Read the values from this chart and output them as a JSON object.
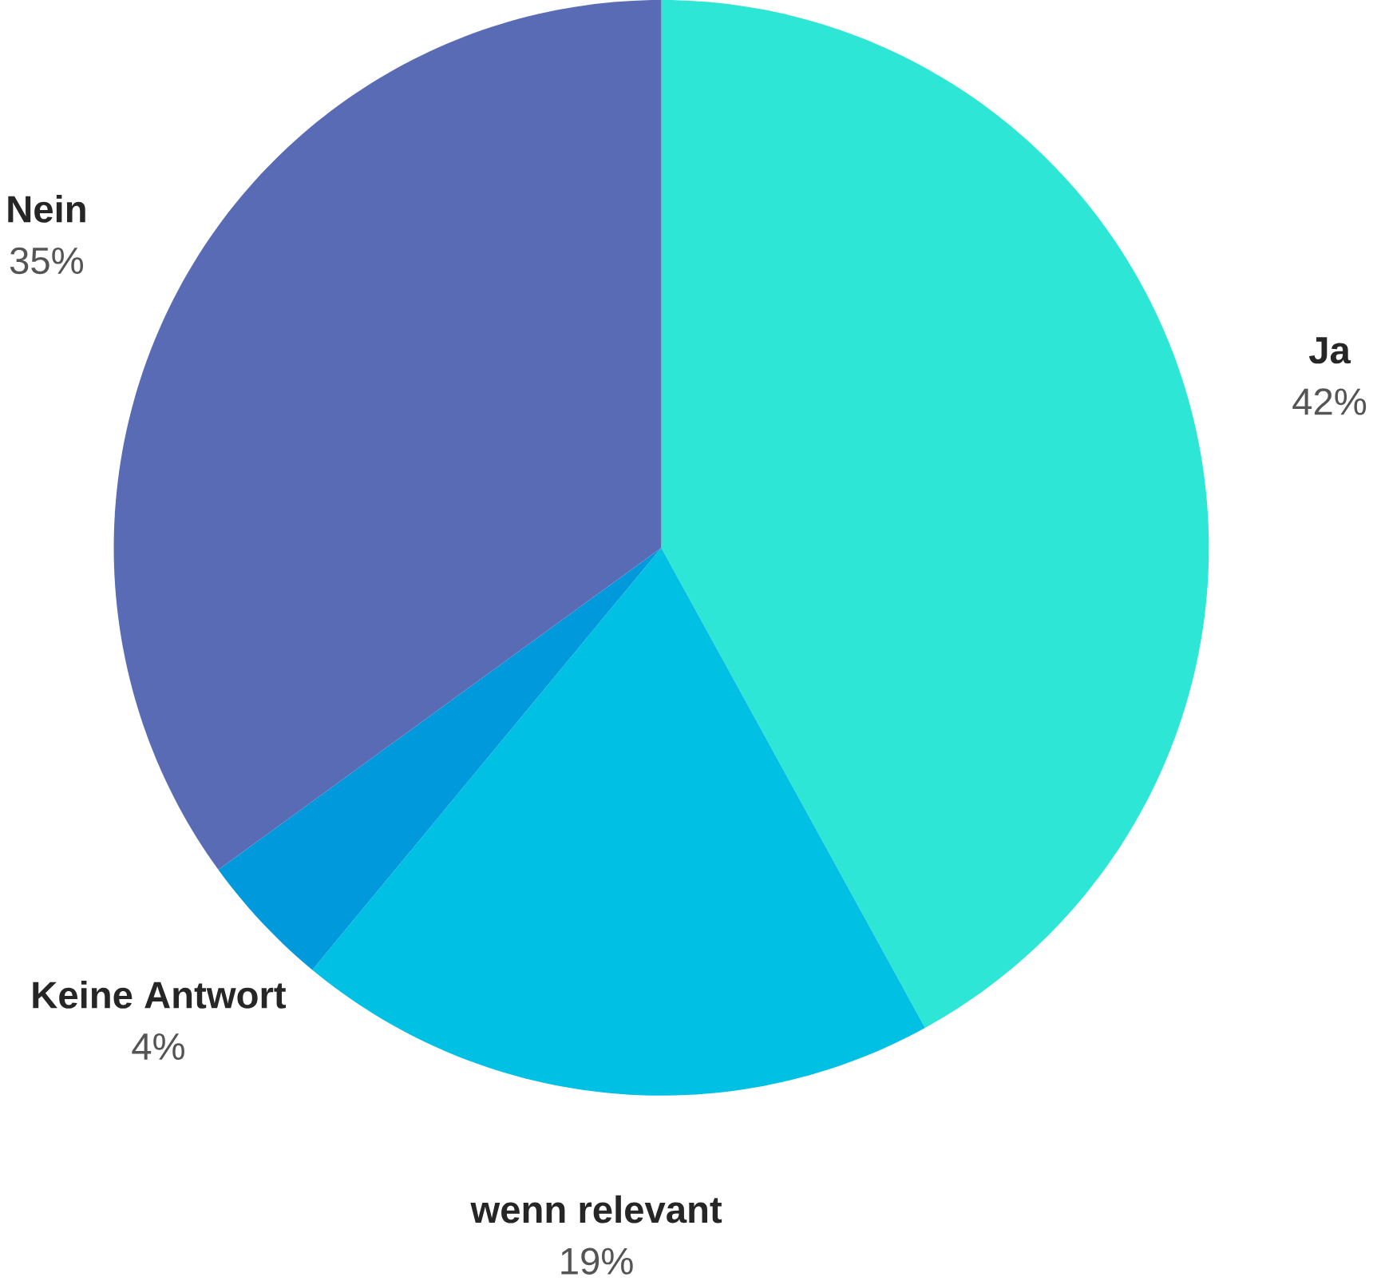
{
  "chart_data": {
    "type": "pie",
    "categories": [
      "Ja",
      "wenn relevant",
      "Keine Antwort",
      "Nein"
    ],
    "values": [
      42,
      19,
      4,
      35
    ],
    "value_labels": [
      "42%",
      "19%",
      "4%",
      "35%"
    ],
    "colors": [
      "#2ee6d6",
      "#00c0e4",
      "#0099db",
      "#5a6bb5"
    ]
  }
}
